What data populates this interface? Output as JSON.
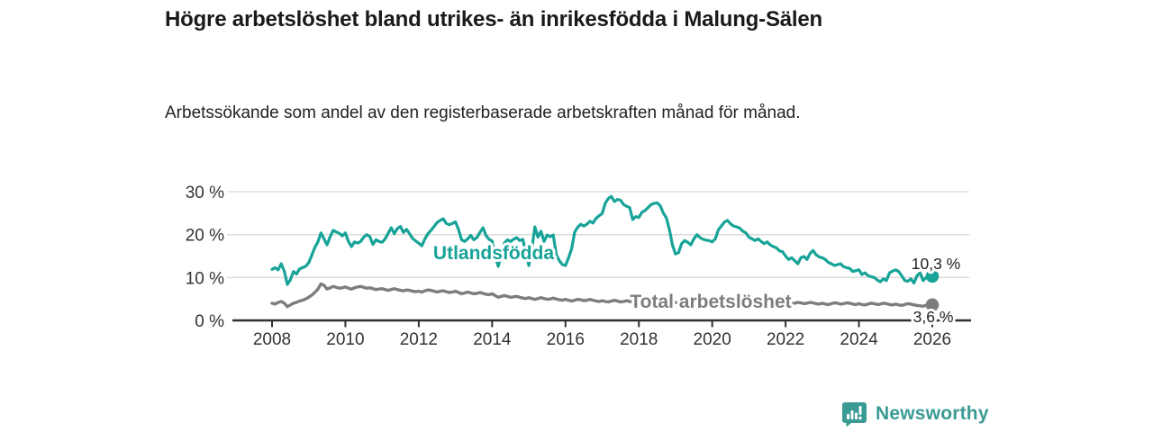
{
  "header": {
    "title": "Högre arbetslöshet bland utrikes- än inrikesfödda i Malung-Sälen",
    "subtitle": "Arbetssökande som andel av den registerbaserade arbetskraften månad för månad."
  },
  "footer": {
    "brand": "Newsworthy"
  },
  "colors": {
    "accent_teal": "#17a398",
    "series_gray": "#7d7d7d",
    "axis": "#2f2f2f",
    "gridline": "#d9d9d9",
    "text": "#1a1a1a",
    "brand_teal": "#3a9a94"
  },
  "chart_data": {
    "type": "line",
    "title": "Högre arbetslöshet bland utrikes- än inrikesfödda i Malung-Sälen",
    "subtitle": "Arbetssökande som andel av den registerbaserade arbetskraften månad för månad.",
    "xlabel": "",
    "ylabel": "",
    "grid": "horizontal",
    "legend_position": "inline-labels",
    "x_start": 2008.0,
    "x_step_years": 0.0833333,
    "xlim": [
      2007.0,
      2027.0
    ],
    "ylim": [
      0,
      31
    ],
    "x_ticks": [
      2008,
      2010,
      2012,
      2014,
      2016,
      2018,
      2020,
      2022,
      2024,
      2026
    ],
    "x_tick_labels": [
      "2008",
      "2010",
      "2012",
      "2014",
      "2016",
      "2018",
      "2020",
      "2022",
      "2024",
      "2026"
    ],
    "y_ticks": [
      0,
      10,
      20,
      30
    ],
    "y_tick_labels": [
      "0 %",
      "10 %",
      "20 %",
      "30 %"
    ],
    "series": [
      {
        "name": "utlandsfodda",
        "label": "Utlandsfödda",
        "color": "#17a398",
        "stroke_width": 3.2,
        "end_label": "10,3 %",
        "end_value": 10.3,
        "values": [
          11.9,
          12.3,
          11.8,
          13.2,
          11.5,
          8.4,
          9.5,
          11.4,
          10.8,
          12.0,
          12.3,
          12.6,
          13.4,
          15.2,
          17.0,
          18.3,
          20.4,
          19.0,
          17.6,
          19.5,
          21.0,
          20.6,
          20.3,
          19.7,
          20.4,
          18.4,
          17.2,
          18.3,
          18.0,
          18.4,
          19.4,
          20.0,
          19.5,
          17.7,
          18.8,
          18.4,
          18.2,
          19.0,
          20.3,
          21.6,
          20.2,
          21.4,
          21.9,
          20.5,
          21.2,
          20.2,
          19.1,
          18.5,
          18.0,
          17.4,
          19.0,
          20.2,
          21.0,
          21.9,
          22.8,
          23.3,
          23.7,
          22.6,
          22.3,
          22.6,
          23.0,
          21.2,
          18.8,
          18.4,
          19.0,
          19.8,
          18.8,
          19.3,
          20.5,
          21.6,
          19.8,
          18.9,
          18.5,
          15.0,
          12.6,
          15.5,
          18.0,
          18.8,
          18.4,
          18.9,
          19.3,
          18.6,
          18.9,
          16.0,
          12.8,
          16.5,
          21.8,
          19.4,
          20.8,
          18.4,
          19.9,
          19.5,
          19.9,
          15.3,
          13.9,
          13.0,
          12.8,
          14.6,
          16.7,
          20.6,
          21.7,
          22.4,
          22.0,
          22.4,
          23.1,
          22.7,
          23.8,
          24.4,
          24.9,
          27.3,
          28.4,
          28.9,
          27.7,
          28.2,
          28.0,
          27.0,
          26.6,
          26.3,
          23.5,
          24.2,
          24.0,
          25.2,
          25.6,
          26.3,
          27.0,
          27.3,
          27.4,
          26.7,
          25.0,
          23.9,
          21.1,
          17.6,
          15.5,
          15.8,
          17.9,
          18.6,
          18.2,
          17.6,
          19.0,
          20.0,
          19.3,
          18.9,
          18.7,
          18.6,
          18.3,
          19.0,
          21.1,
          22.0,
          22.9,
          23.3,
          22.5,
          22.0,
          21.8,
          21.5,
          20.8,
          20.4,
          19.4,
          19.0,
          18.6,
          19.0,
          18.4,
          17.9,
          18.3,
          17.6,
          17.2,
          16.9,
          16.2,
          16.0,
          15.0,
          14.2,
          14.6,
          13.9,
          13.2,
          14.6,
          14.9,
          14.2,
          15.6,
          16.3,
          15.3,
          14.8,
          14.6,
          14.2,
          13.5,
          13.2,
          12.8,
          13.0,
          13.2,
          12.5,
          12.3,
          12.1,
          11.4,
          11.6,
          11.8,
          10.7,
          11.1,
          10.4,
          10.2,
          10.0,
          9.4,
          9.0,
          9.7,
          9.3,
          11.1,
          11.5,
          11.8,
          11.4,
          10.4,
          9.3,
          9.1,
          9.7,
          8.7,
          10.4,
          11.1,
          9.3,
          10.0,
          10.0,
          10.3
        ]
      },
      {
        "name": "total-arbetsloshet",
        "label": "Total arbetslöshet",
        "color": "#7d7d7d",
        "stroke_width": 3.4,
        "end_label": "3,6 %",
        "end_value": 3.6,
        "values": [
          4.0,
          3.8,
          4.2,
          4.4,
          4.0,
          3.2,
          3.6,
          4.0,
          4.2,
          4.5,
          4.7,
          5.0,
          5.4,
          5.9,
          6.5,
          7.3,
          8.5,
          8.2,
          7.3,
          7.6,
          7.9,
          7.7,
          7.5,
          7.6,
          7.8,
          7.5,
          7.3,
          7.6,
          7.8,
          7.9,
          7.7,
          7.5,
          7.6,
          7.4,
          7.2,
          7.3,
          7.4,
          7.2,
          7.0,
          7.2,
          7.4,
          7.2,
          7.0,
          6.9,
          7.1,
          7.0,
          6.8,
          6.7,
          6.8,
          6.6,
          6.9,
          7.1,
          7.0,
          6.8,
          6.6,
          6.8,
          6.9,
          6.7,
          6.5,
          6.6,
          6.8,
          6.5,
          6.2,
          6.4,
          6.6,
          6.4,
          6.2,
          6.3,
          6.5,
          6.3,
          6.1,
          6.0,
          6.2,
          5.8,
          5.4,
          5.6,
          5.8,
          5.6,
          5.4,
          5.5,
          5.6,
          5.4,
          5.2,
          5.1,
          5.3,
          5.1,
          4.9,
          5.1,
          5.3,
          5.1,
          4.9,
          5.0,
          5.2,
          5.0,
          4.8,
          4.7,
          4.9,
          4.7,
          4.5,
          4.7,
          4.9,
          4.8,
          4.6,
          4.7,
          4.9,
          4.7,
          4.5,
          4.4,
          4.6,
          4.4,
          4.3,
          4.5,
          4.7,
          4.5,
          4.3,
          4.4,
          4.6,
          4.4,
          4.3,
          4.2,
          4.4,
          4.2,
          4.1,
          4.3,
          4.5,
          4.4,
          4.2,
          4.3,
          4.5,
          4.3,
          4.1,
          4.0,
          4.2,
          4.0,
          3.9,
          4.1,
          4.3,
          4.2,
          4.0,
          4.1,
          4.3,
          4.2,
          4.0,
          4.1,
          4.3,
          4.5,
          5.0,
          5.4,
          5.6,
          5.5,
          5.3,
          5.2,
          5.1,
          5.0,
          4.9,
          4.8,
          4.9,
          4.7,
          4.6,
          4.7,
          4.8,
          4.6,
          4.4,
          4.5,
          4.6,
          4.4,
          4.2,
          4.1,
          4.2,
          4.0,
          3.9,
          4.0,
          4.2,
          4.1,
          3.9,
          4.0,
          4.2,
          4.1,
          3.9,
          3.8,
          4.0,
          3.8,
          3.7,
          3.9,
          4.1,
          4.0,
          3.8,
          3.9,
          4.1,
          4.0,
          3.8,
          3.7,
          3.9,
          3.7,
          3.6,
          3.8,
          4.0,
          3.9,
          3.7,
          3.8,
          4.0,
          3.9,
          3.7,
          3.6,
          3.8,
          3.6,
          3.5,
          3.7,
          3.9,
          3.8,
          3.6,
          3.5,
          3.4,
          3.3,
          3.5,
          3.5,
          3.6
        ]
      }
    ]
  }
}
